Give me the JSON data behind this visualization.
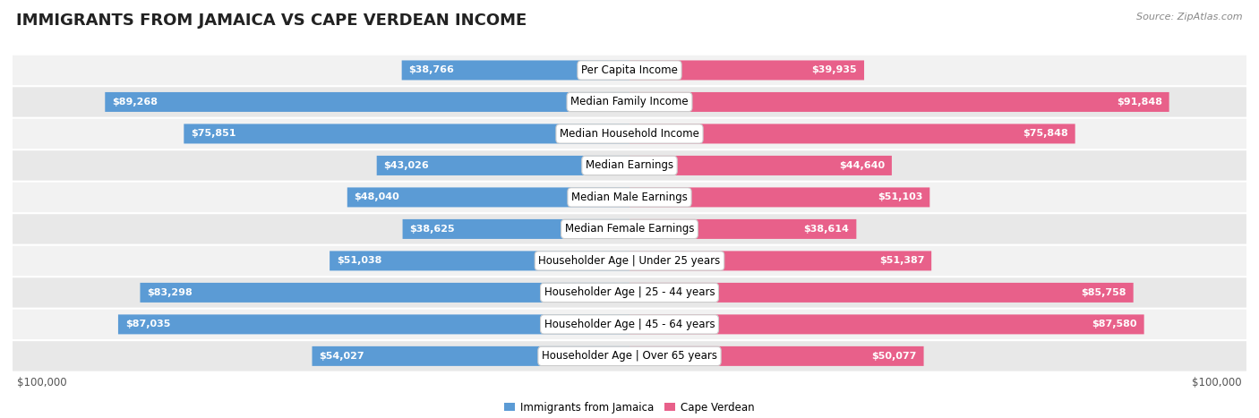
{
  "title": "IMMIGRANTS FROM JAMAICA VS CAPE VERDEAN INCOME",
  "source": "Source: ZipAtlas.com",
  "categories": [
    "Per Capita Income",
    "Median Family Income",
    "Median Household Income",
    "Median Earnings",
    "Median Male Earnings",
    "Median Female Earnings",
    "Householder Age | Under 25 years",
    "Householder Age | 25 - 44 years",
    "Householder Age | 45 - 64 years",
    "Householder Age | Over 65 years"
  ],
  "jamaica_values": [
    38766,
    89268,
    75851,
    43026,
    48040,
    38625,
    51038,
    83298,
    87035,
    54027
  ],
  "capeverde_values": [
    39935,
    91848,
    75848,
    44640,
    51103,
    38614,
    51387,
    85758,
    87580,
    50077
  ],
  "jamaica_color_light": "#aac9e8",
  "jamaica_color_dark": "#5b9bd5",
  "capeverde_color_light": "#f8b8cb",
  "capeverde_color_dark": "#e8608a",
  "max_value": 100000,
  "background_color": "#ffffff",
  "row_bg_light": "#f2f2f2",
  "row_bg_dark": "#e8e8e8",
  "title_fontsize": 13,
  "source_fontsize": 8,
  "label_fontsize": 8.5,
  "value_fontsize": 8,
  "large_threshold": 0.3
}
